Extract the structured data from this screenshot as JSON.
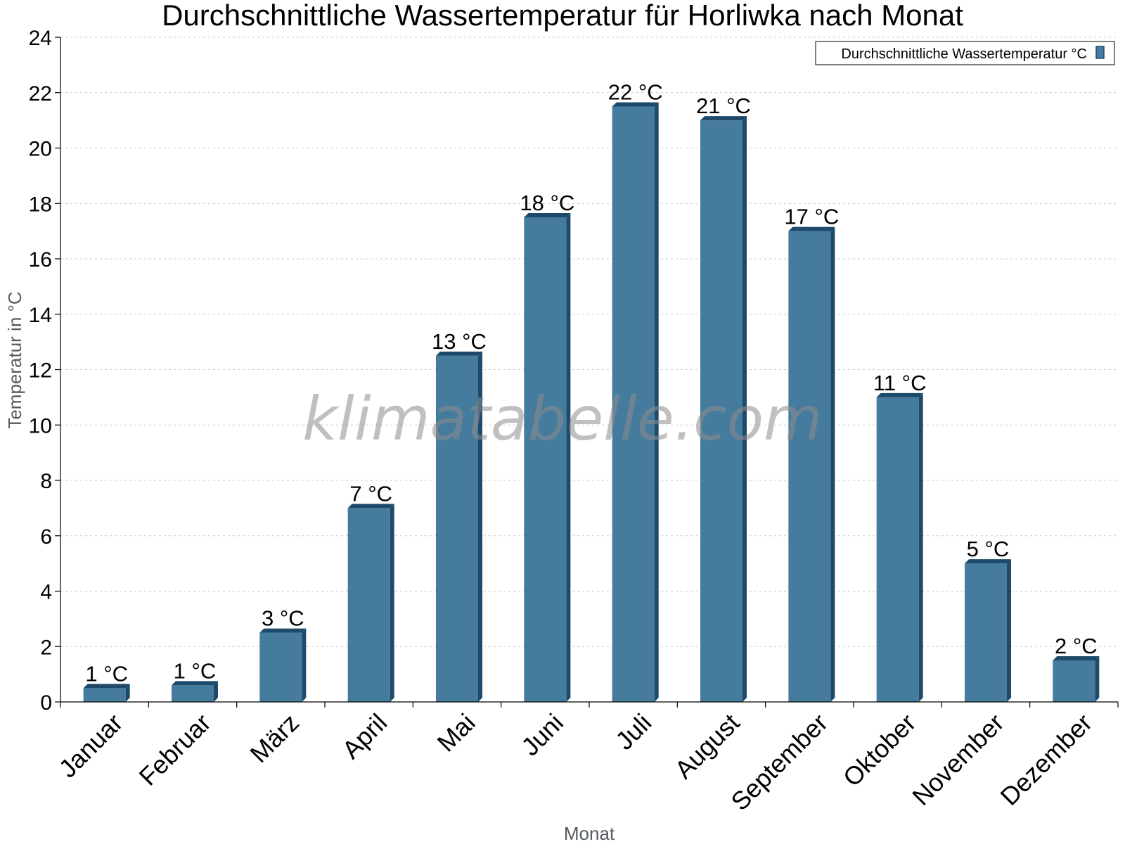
{
  "chart_data": {
    "type": "bar",
    "title": "Durchschnittliche Wassertemperatur für Horliwka nach Monat",
    "xlabel": "Monat",
    "ylabel": "Temperatur in °C",
    "categories": [
      "Januar",
      "Februar",
      "März",
      "April",
      "Mai",
      "Juni",
      "Juli",
      "August",
      "September",
      "Oktober",
      "November",
      "Dezember"
    ],
    "series": [
      {
        "name": "Durchschnittliche Wassertemperatur °C",
        "values": [
          0.5,
          0.6,
          2.5,
          7.0,
          12.5,
          17.5,
          21.5,
          21.0,
          17.0,
          11.0,
          5.0,
          1.5
        ],
        "labels": [
          "1 °C",
          "1 °C",
          "3 °C",
          "7 °C",
          "13 °C",
          "18 °C",
          "22 °C",
          "21 °C",
          "17 °C",
          "11 °C",
          "5 °C",
          "2 °C"
        ]
      }
    ],
    "ylim": [
      0,
      24
    ],
    "yticks": [
      0,
      2,
      4,
      6,
      8,
      10,
      12,
      14,
      16,
      18,
      20,
      22,
      24
    ],
    "grid": true,
    "legend_position": "top-right",
    "bar_color": "#457b9d",
    "bar_edge_color": "#1d4a6a",
    "watermark": "klimatabelle.com"
  }
}
